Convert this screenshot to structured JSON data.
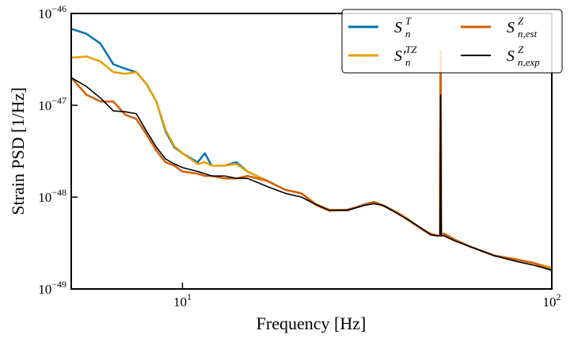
{
  "chart_data": {
    "type": "line",
    "xlabel": "Frequency [Hz]",
    "ylabel": "Strain PSD [1/Hz]",
    "xscale": "log",
    "yscale": "log",
    "xlim": [
      5,
      100
    ],
    "ylim": [
      1e-49,
      1e-46
    ],
    "xticks": [
      {
        "value": 10,
        "label": "10",
        "exponent": "1"
      },
      {
        "value": 100,
        "label": "10",
        "exponent": "2"
      }
    ],
    "yticks": [
      {
        "value": 1e-49,
        "label": "10",
        "exponent": "−49"
      },
      {
        "value": 1e-48,
        "label": "10",
        "exponent": "−48"
      },
      {
        "value": 1e-47,
        "label": "10",
        "exponent": "−47"
      },
      {
        "value": 1e-46,
        "label": "10",
        "exponent": "−46"
      }
    ],
    "legend": "upper right",
    "x": [
      5,
      5.5,
      6,
      6.5,
      7,
      7.5,
      8,
      8.5,
      9,
      9.5,
      10,
      11,
      11.5,
      12,
      13,
      14,
      15,
      17,
      19,
      21,
      23,
      25,
      28,
      31,
      33,
      35,
      38,
      41,
      44,
      47,
      49,
      49.8,
      50,
      50.2,
      51,
      55,
      60,
      70,
      80,
      90,
      100
    ],
    "series": [
      {
        "name": "S",
        "name_sup": "T",
        "name_sub": "n",
        "color": "#0072b2",
        "width": 2.5,
        "values": [
          6.8e-47,
          6e-47,
          4.7e-47,
          2.8e-47,
          2.5e-47,
          2.3e-47,
          1.7e-47,
          1.1e-47,
          5.2e-48,
          3.5e-48,
          3e-48,
          2.4e-48,
          3e-48,
          2.2e-48,
          2.2e-48,
          2.4e-48,
          1.9e-48,
          1.5e-48,
          1.2e-48,
          1.1e-48,
          8.3e-49,
          7.2e-49,
          7.2e-49,
          8.3e-49,
          8.9e-49,
          8.1e-49,
          6.9e-49,
          5.6e-49,
          4.6e-49,
          4e-49,
          3.8e-49,
          3.8e-49,
          3.9e-47,
          3.8e-49,
          4e-49,
          3.4e-49,
          2.9e-49,
          2.3e-49,
          2.1e-49,
          1.9e-49,
          1.7e-49
        ]
      },
      {
        "name": "S′",
        "name_sup": "TZ",
        "name_sub": "n",
        "color": "#e69f00",
        "width": 2.5,
        "values": [
          3.3e-47,
          3.4e-47,
          3e-47,
          2.3e-47,
          2.2e-47,
          2.3e-47,
          1.7e-47,
          1.1e-47,
          5.4e-48,
          3.6e-48,
          3e-48,
          2.3e-48,
          2.4e-48,
          2.2e-48,
          2.2e-48,
          2.3e-48,
          1.9e-48,
          1.5e-48,
          1.2e-48,
          1.1e-48,
          8.4e-49,
          7.3e-49,
          7.2e-49,
          8.2e-49,
          8.9e-49,
          8e-49,
          6.9e-49,
          5.7e-49,
          4.6e-49,
          4e-49,
          3.8e-49,
          3.8e-49,
          3.9e-47,
          3.8e-49,
          4e-49,
          3.4e-49,
          2.9e-49,
          2.3e-49,
          2.1e-49,
          1.9e-49,
          1.7e-49
        ]
      },
      {
        "name": "S",
        "name_sup": "Z",
        "name_sub": "n,est",
        "color": "#d55e00",
        "width": 2.5,
        "values": [
          2e-47,
          1.3e-47,
          1.1e-47,
          1.1e-47,
          7.9e-48,
          7.1e-48,
          4.8e-48,
          3.2e-48,
          2.4e-48,
          2.2e-48,
          1.9e-48,
          1.8e-48,
          1.7e-48,
          1.7e-48,
          1.6e-48,
          1.6e-48,
          1.7e-48,
          1.5e-48,
          1.2e-48,
          1.1e-48,
          8.2e-49,
          7.1e-49,
          7.3e-49,
          8.2e-49,
          8.8e-49,
          8.1e-49,
          6.8e-49,
          5.6e-49,
          4.6e-49,
          3.9e-49,
          3.8e-49,
          3.8e-49,
          3.9e-47,
          3.8e-49,
          4e-49,
          3.4e-49,
          2.9e-49,
          2.3e-49,
          2.1e-49,
          1.9e-49,
          1.6e-49
        ]
      },
      {
        "name": "S",
        "name_sup": "Z",
        "name_sub": "n,exp",
        "color": "#000000",
        "width": 1.6,
        "values": [
          2e-47,
          1.6e-47,
          1.2e-47,
          8.7e-48,
          8.5e-48,
          8.1e-48,
          5.2e-48,
          3.5e-48,
          2.6e-48,
          2.3e-48,
          2.1e-48,
          1.9e-48,
          1.8e-48,
          1.7e-48,
          1.7e-48,
          1.6e-48,
          1.6e-48,
          1.3e-48,
          1.1e-48,
          1e-48,
          8.3e-49,
          7.2e-49,
          7.2e-49,
          8.1e-49,
          8.5e-49,
          8.1e-49,
          6.7e-49,
          5.6e-49,
          4.7e-49,
          3.9e-49,
          3.8e-49,
          3.8e-49,
          1.3e-47,
          3.8e-49,
          3.8e-49,
          3.3e-49,
          2.9e-49,
          2.3e-49,
          2e-49,
          1.8e-49,
          1.6e-49
        ]
      }
    ]
  }
}
